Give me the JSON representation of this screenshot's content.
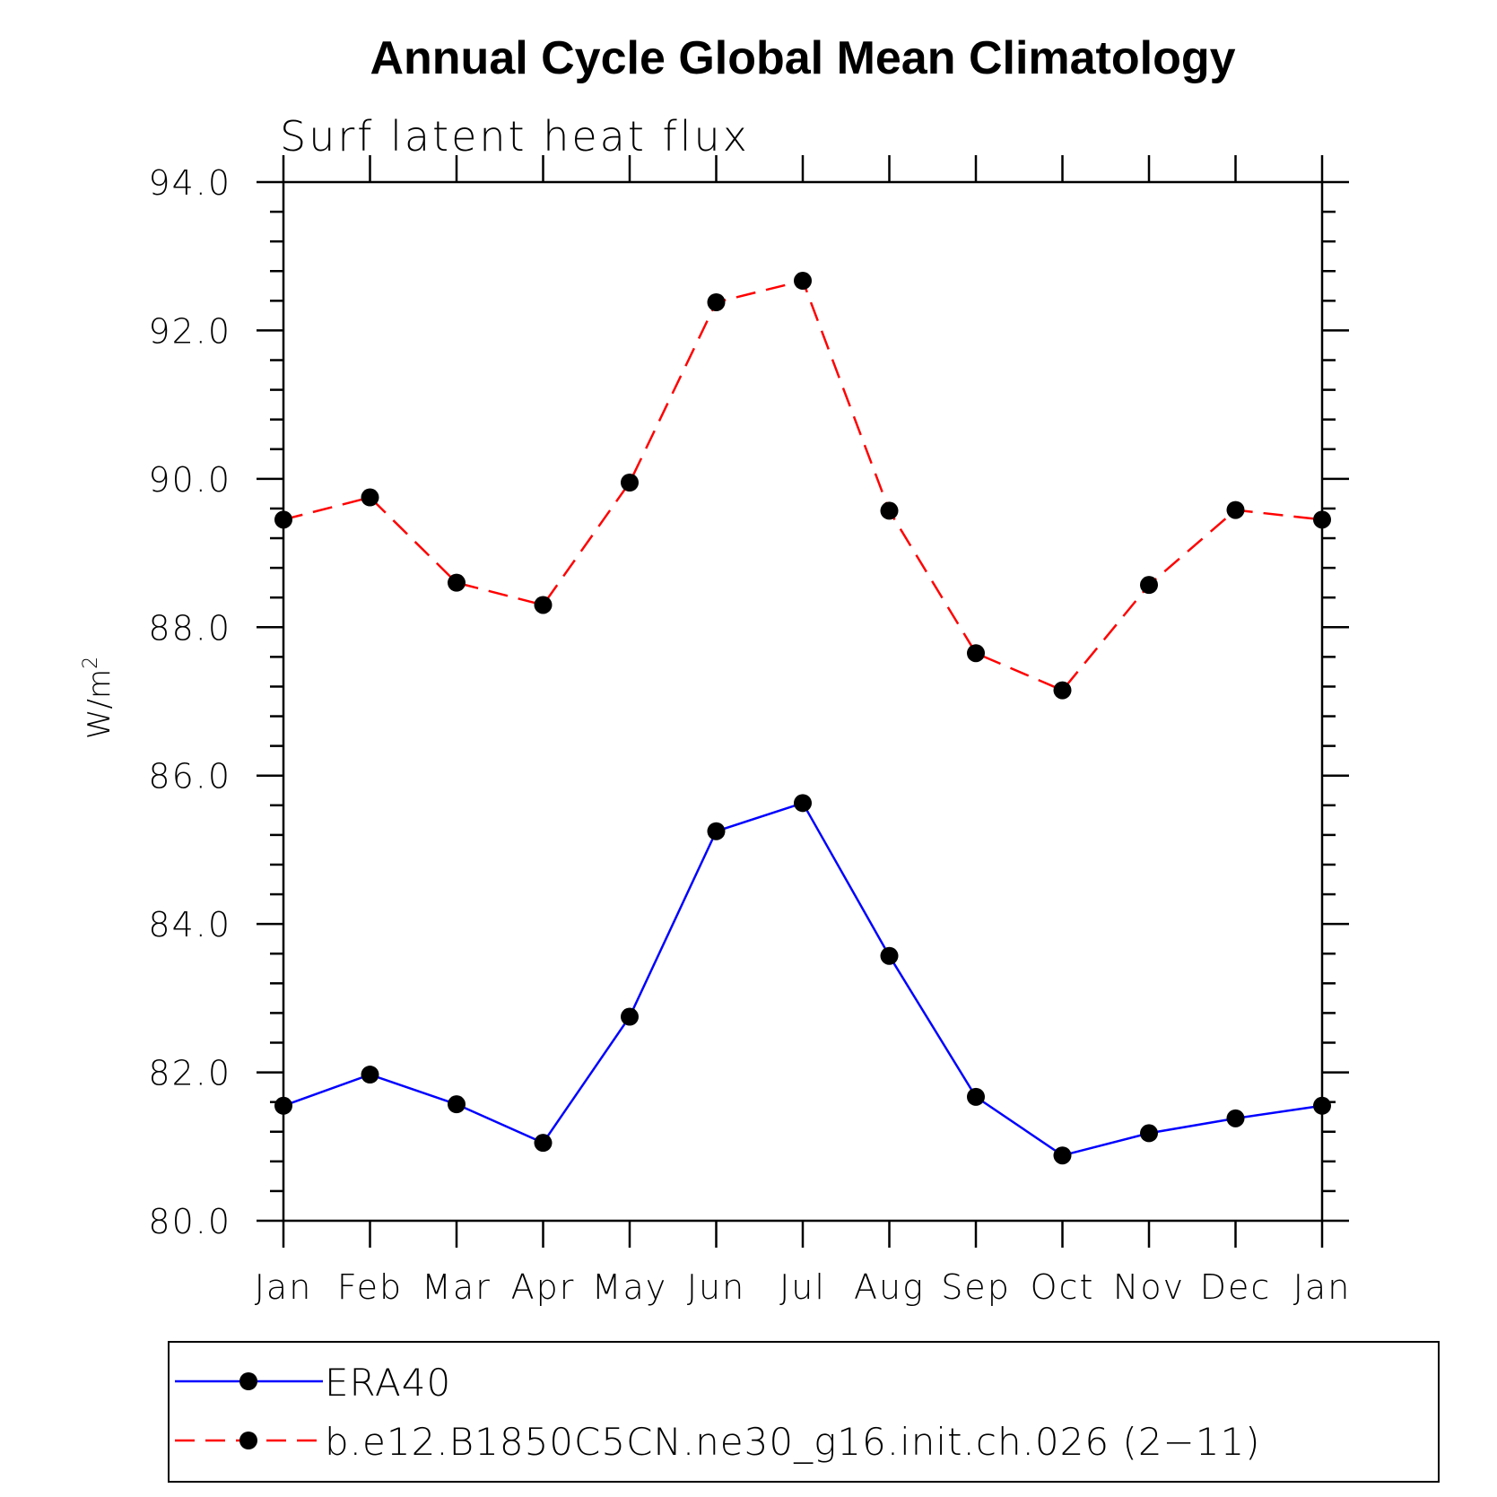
{
  "chart_data": {
    "type": "line",
    "title": "Annual Cycle Global Mean Climatology",
    "subtitle": "Surf latent heat flux",
    "ylabel": "W/m",
    "ylabel_sup": "2",
    "categories": [
      "Jan",
      "Feb",
      "Mar",
      "Apr",
      "May",
      "Jun",
      "Jul",
      "Aug",
      "Sep",
      "Oct",
      "Nov",
      "Dec",
      "Jan"
    ],
    "ylim": [
      80.0,
      94.0
    ],
    "yticks": [
      "80.0",
      "82.0",
      "84.0",
      "86.0",
      "88.0",
      "90.0",
      "92.0",
      "94.0"
    ],
    "ytick_values": [
      80,
      82,
      84,
      86,
      88,
      90,
      92,
      94
    ],
    "legend_position": "bottom",
    "series": [
      {
        "name": "ERA40",
        "color": "#0000ff",
        "dash": "solid",
        "values": [
          81.55,
          81.97,
          81.57,
          81.05,
          82.75,
          85.25,
          85.63,
          83.57,
          81.67,
          80.88,
          81.18,
          81.38,
          81.55
        ]
      },
      {
        "name": "b.e12.B1850C5CN.ne30_g16.init.ch.026 (2−11)",
        "color": "#ff0000",
        "dash": "dashed",
        "values": [
          89.45,
          89.75,
          88.6,
          88.3,
          89.95,
          92.38,
          92.67,
          89.57,
          87.65,
          87.15,
          88.57,
          89.58,
          89.45
        ]
      }
    ]
  }
}
